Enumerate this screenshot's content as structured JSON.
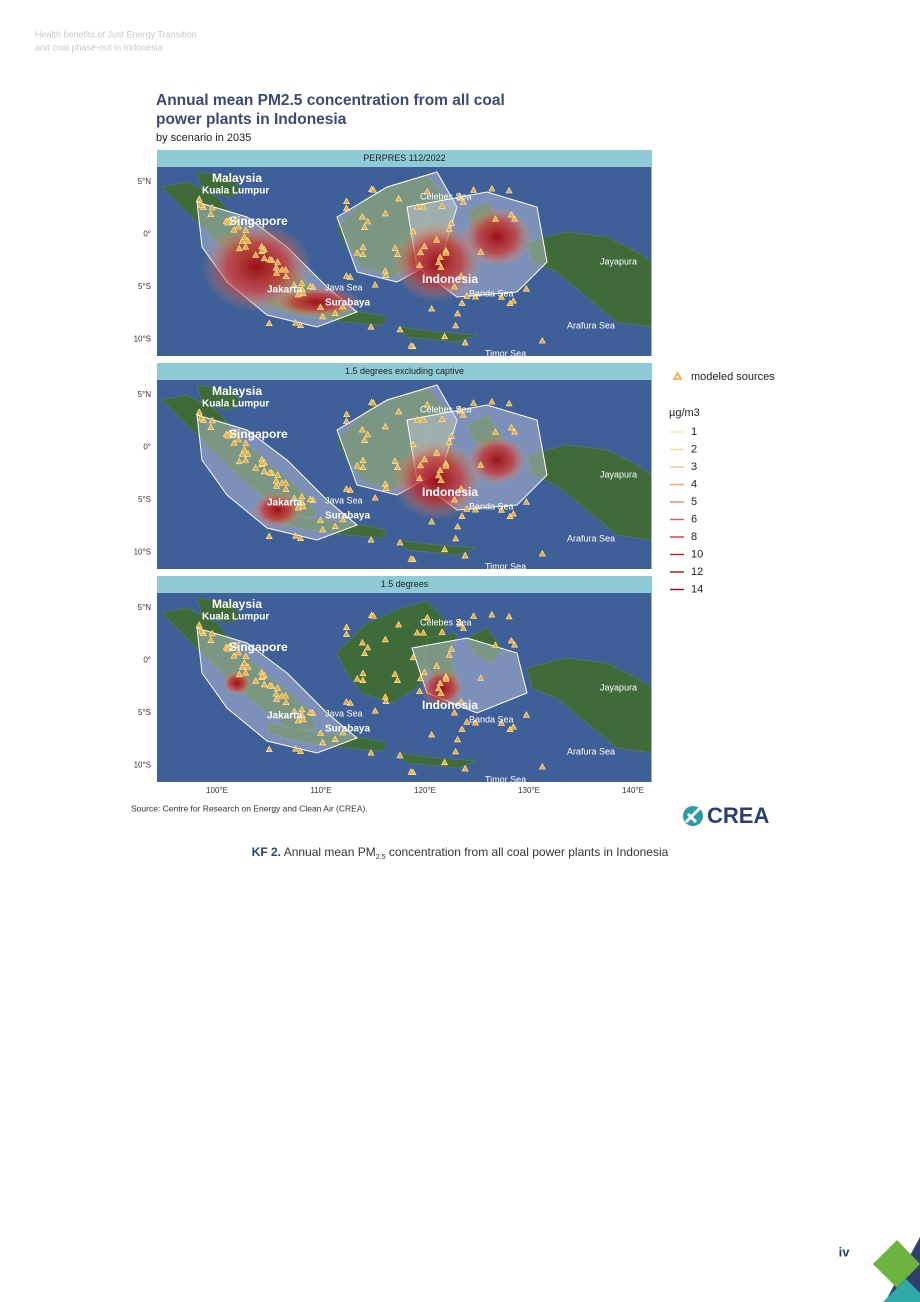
{
  "header": {
    "line1": "Health benefits of Just Energy Transition",
    "line2": "and coal phase-out in Indonesia"
  },
  "figure": {
    "title_line1": "Annual mean PM2.5 concentration from all coal",
    "title_line2": "power plants in Indonesia",
    "subtitle": "by scenario in 2035",
    "panels": [
      {
        "title": "PERPRES 112/2022"
      },
      {
        "title": "1.5 degrees excluding captive"
      },
      {
        "title": "1.5 degrees"
      }
    ],
    "y_axis_labels": [
      "5°N",
      "0°",
      "5°S",
      "10°S"
    ],
    "x_axis_labels": [
      "100°E",
      "110°E",
      "120°E",
      "130°E",
      "140°E"
    ],
    "map_labels": [
      "Malaysia",
      "Kuala Lumpur",
      "Singapore",
      "Jakarta",
      "Java Sea",
      "Surabaya",
      "Indonesia",
      "Banda Sea",
      "Celebes Sea",
      "Jayapura",
      "Arafura Sea",
      "Timor Sea"
    ],
    "legend": {
      "sources": "modeled sources",
      "unit": "µg/m3",
      "levels": [
        1,
        2,
        3,
        4,
        5,
        6,
        8,
        10,
        12,
        14
      ]
    },
    "source": "Source: Centre for Research on Energy and Clean Air (CREA).",
    "logo": "CREA"
  },
  "caption": {
    "label": "KF 2.",
    "text_before": "Annual mean PM",
    "subscript": "2.5",
    "text_after": "concentration from all coal power plants in Indonesia"
  },
  "page_number": "iv"
}
